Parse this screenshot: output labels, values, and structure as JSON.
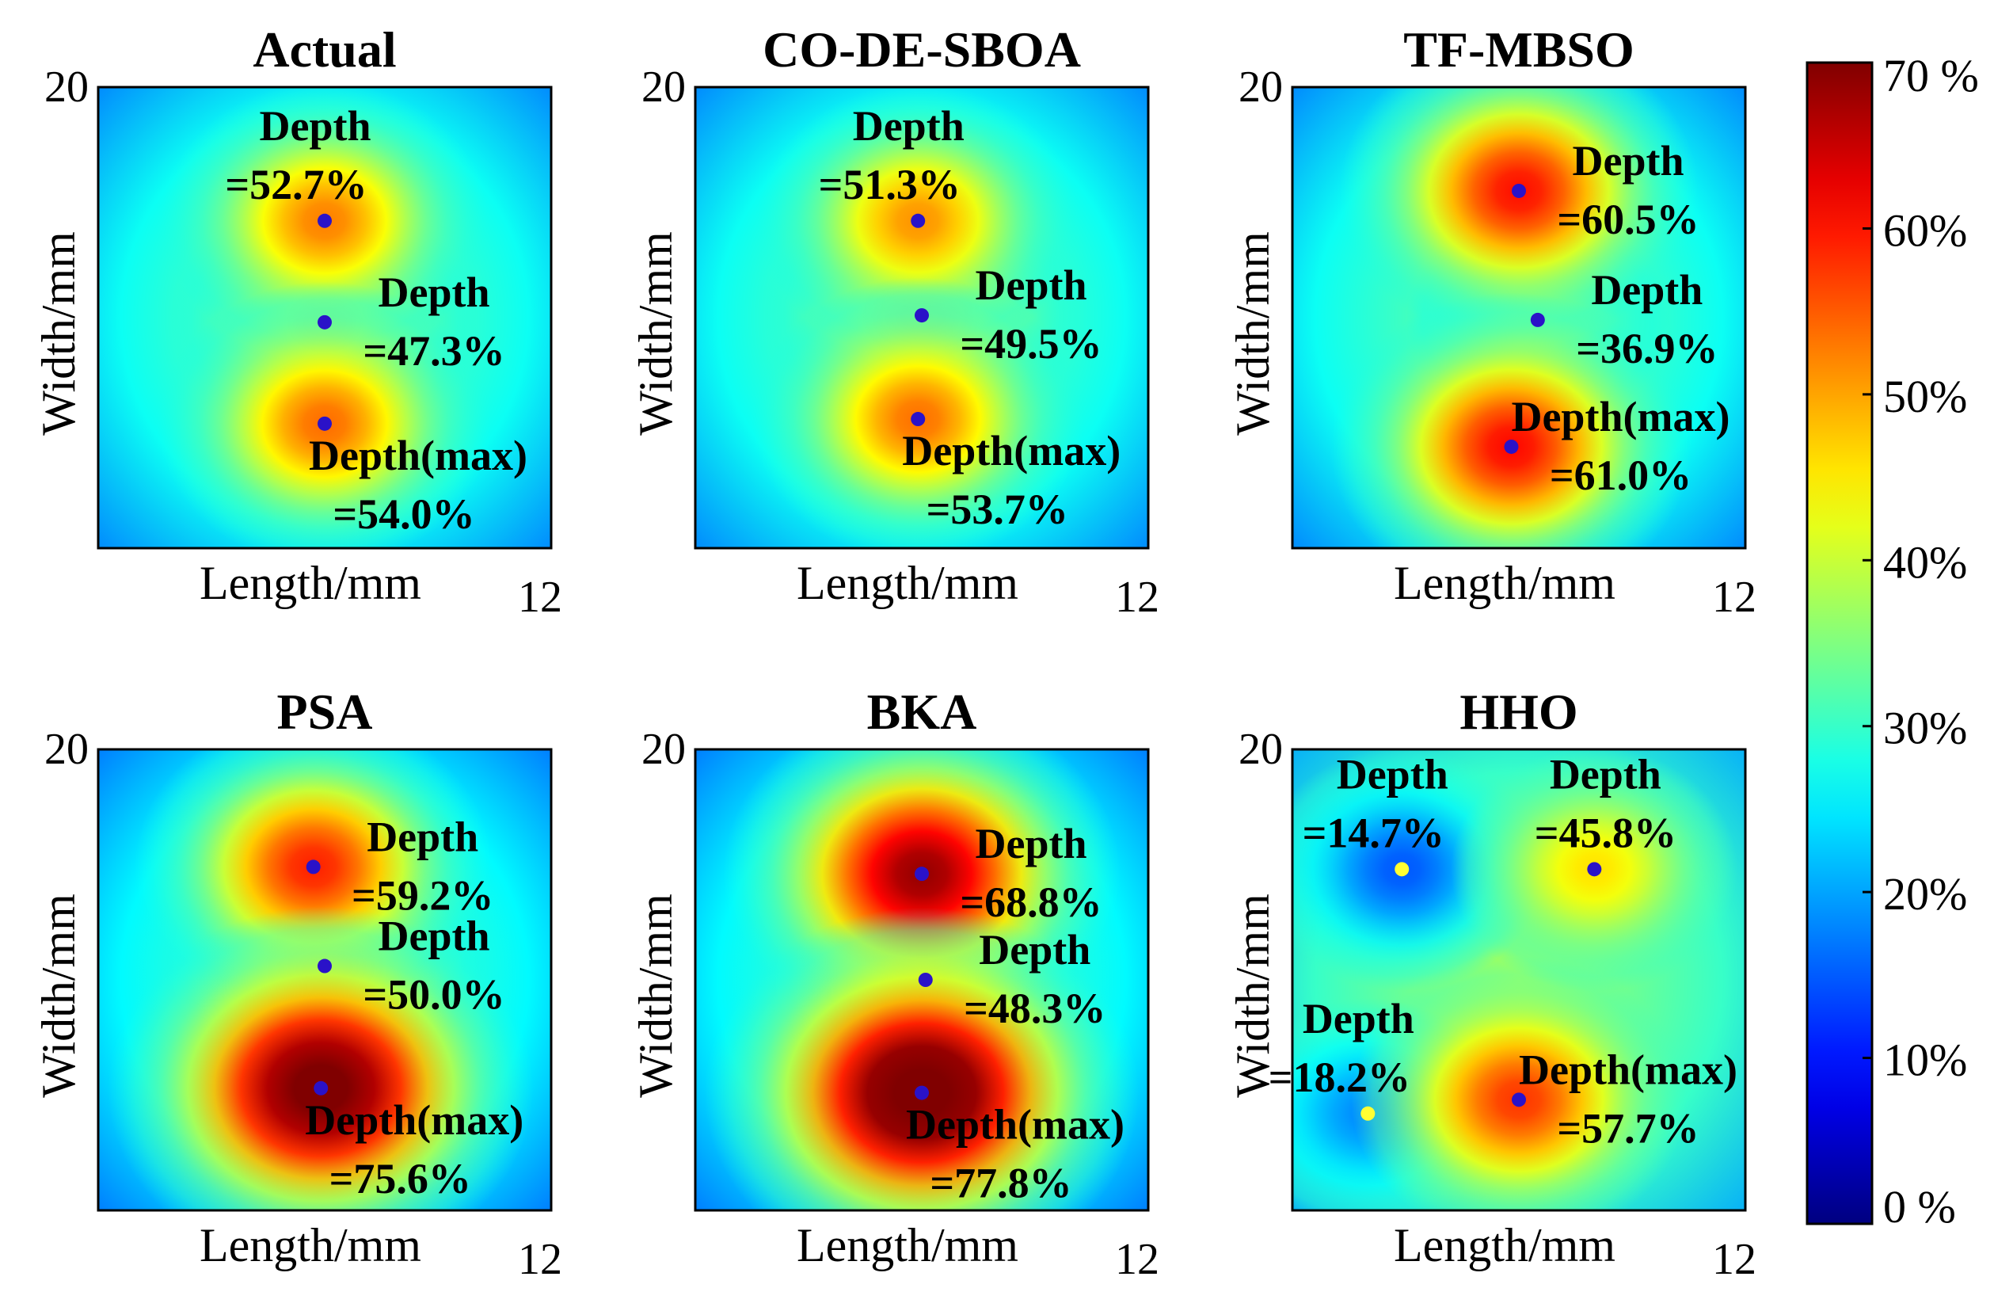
{
  "chart_data": {
    "type": "heatmap",
    "value_unit": "%",
    "colorbar": {
      "min": 0,
      "max": 70,
      "colormap": "jet",
      "ticks": [
        {
          "value": 0,
          "label": "0 %"
        },
        {
          "value": 10,
          "label": "10%"
        },
        {
          "value": 20,
          "label": "20%"
        },
        {
          "value": 30,
          "label": "30%"
        },
        {
          "value": 40,
          "label": "40%"
        },
        {
          "value": 50,
          "label": "50%"
        },
        {
          "value": 60,
          "label": "60%"
        },
        {
          "value": 70,
          "label": "70 %"
        }
      ]
    },
    "panels": [
      {
        "title": "Actual",
        "xlabel": "Length/mm",
        "ylabel": "Width/mm",
        "xmax_label": "12",
        "ymax_label": "20",
        "xlim": [
          0,
          12
        ],
        "ylim": [
          0,
          20
        ],
        "background": 27,
        "peaks": [
          {
            "x": 6.0,
            "y": 14.2,
            "depth": 52.7,
            "line1": "Depth",
            "line2": "=52.7%",
            "marker": "#2a12c8",
            "label_anchor": "above"
          },
          {
            "x": 6.0,
            "y": 9.8,
            "depth": 47.3,
            "line1": "Depth",
            "line2": "=47.3%",
            "marker": "#2a12c8",
            "label_anchor": "right"
          },
          {
            "x": 6.0,
            "y": 5.4,
            "depth": 54.0,
            "line1": "Depth(max)",
            "line2": "=54.0%",
            "marker": "#2a12c8",
            "label_anchor": "below-right"
          }
        ]
      },
      {
        "title": "CO-DE-SBOA",
        "xlabel": "Length/mm",
        "ylabel": "Width/mm",
        "xmax_label": "12",
        "ymax_label": "20",
        "xlim": [
          0,
          12
        ],
        "ylim": [
          0,
          20
        ],
        "background": 27,
        "peaks": [
          {
            "x": 5.9,
            "y": 14.2,
            "depth": 51.3,
            "line1": "Depth",
            "line2": "=51.3%",
            "marker": "#2a12c8",
            "label_anchor": "above"
          },
          {
            "x": 6.0,
            "y": 10.1,
            "depth": 49.5,
            "line1": "Depth",
            "line2": "=49.5%",
            "marker": "#2a12c8",
            "label_anchor": "right"
          },
          {
            "x": 5.9,
            "y": 5.6,
            "depth": 53.7,
            "line1": "Depth(max)",
            "line2": "=53.7%",
            "marker": "#2a12c8",
            "label_anchor": "below-right"
          }
        ]
      },
      {
        "title": "TF-MBSO",
        "xlabel": "Length/mm",
        "ylabel": "Width/mm",
        "xmax_label": "12",
        "ymax_label": "20",
        "xlim": [
          0,
          12
        ],
        "ylim": [
          0,
          20
        ],
        "background": 27,
        "peaks": [
          {
            "x": 6.0,
            "y": 15.5,
            "depth": 60.5,
            "line1": "Depth",
            "line2": "=60.5%",
            "marker": "#2a12c8",
            "label_anchor": "right"
          },
          {
            "x": 6.5,
            "y": 9.9,
            "depth": 36.9,
            "line1": "Depth",
            "line2": "=36.9%",
            "marker": "#2a12c8",
            "label_anchor": "right"
          },
          {
            "x": 5.8,
            "y": 4.4,
            "depth": 61.0,
            "line1": "Depth(max)",
            "line2": "=61.0%",
            "marker": "#2a12c8",
            "label_anchor": "right"
          }
        ]
      },
      {
        "title": "PSA",
        "xlabel": "Length/mm",
        "ylabel": "Width/mm",
        "xmax_label": "12",
        "ymax_label": "20",
        "xlim": [
          0,
          12
        ],
        "ylim": [
          0,
          20
        ],
        "background": 26,
        "peaks": [
          {
            "x": 5.7,
            "y": 14.9,
            "depth": 59.2,
            "line1": "Depth",
            "line2": "=59.2%",
            "marker": "#2a12c8",
            "label_anchor": "right"
          },
          {
            "x": 6.0,
            "y": 10.6,
            "depth": 50.0,
            "line1": "Depth",
            "line2": "=50.0%",
            "marker": "#2a12c8",
            "label_anchor": "right"
          },
          {
            "x": 5.9,
            "y": 5.3,
            "depth": 75.6,
            "line1": "Depth(max)",
            "line2": "=75.6%",
            "marker": "#2a12c8",
            "label_anchor": "below-right"
          }
        ]
      },
      {
        "title": "BKA",
        "xlabel": "Length/mm",
        "ylabel": "Width/mm",
        "xmax_label": "12",
        "ymax_label": "20",
        "xlim": [
          0,
          12
        ],
        "ylim": [
          0,
          20
        ],
        "background": 26,
        "peaks": [
          {
            "x": 6.0,
            "y": 14.6,
            "depth": 68.8,
            "line1": "Depth",
            "line2": "=68.8%",
            "marker": "#2a12c8",
            "label_anchor": "right"
          },
          {
            "x": 6.1,
            "y": 10.0,
            "depth": 48.3,
            "line1": "Depth",
            "line2": "=48.3%",
            "marker": "#2a12c8",
            "label_anchor": "right"
          },
          {
            "x": 6.0,
            "y": 5.1,
            "depth": 77.8,
            "line1": "Depth(max)",
            "line2": "=77.8%",
            "marker": "#2a12c8",
            "label_anchor": "below-right"
          }
        ]
      },
      {
        "title": "HHO",
        "xlabel": "Length/mm",
        "ylabel": "Width/mm",
        "xmax_label": "12",
        "ymax_label": "20",
        "xlim": [
          0,
          12
        ],
        "ylim": [
          0,
          20
        ],
        "background": 30,
        "peaks": [
          {
            "x": 2.9,
            "y": 14.8,
            "depth": 14.7,
            "line1": "Depth",
            "line2": "=14.7%",
            "marker": "#ffff33",
            "label_anchor": "above"
          },
          {
            "x": 8.0,
            "y": 14.8,
            "depth": 45.8,
            "line1": "Depth",
            "line2": "=45.8%",
            "marker": "#2a12c8",
            "label_anchor": "above-left"
          },
          {
            "x": 2.0,
            "y": 4.2,
            "depth": 18.2,
            "line1": "Depth",
            "line2": "=18.2%",
            "marker": "#ffff33",
            "label_anchor": "above"
          },
          {
            "x": 6.0,
            "y": 4.8,
            "depth": 57.7,
            "line1": "Depth(max)",
            "line2": "=57.7%",
            "marker": "#2a12c8",
            "label_anchor": "right"
          }
        ]
      }
    ]
  }
}
